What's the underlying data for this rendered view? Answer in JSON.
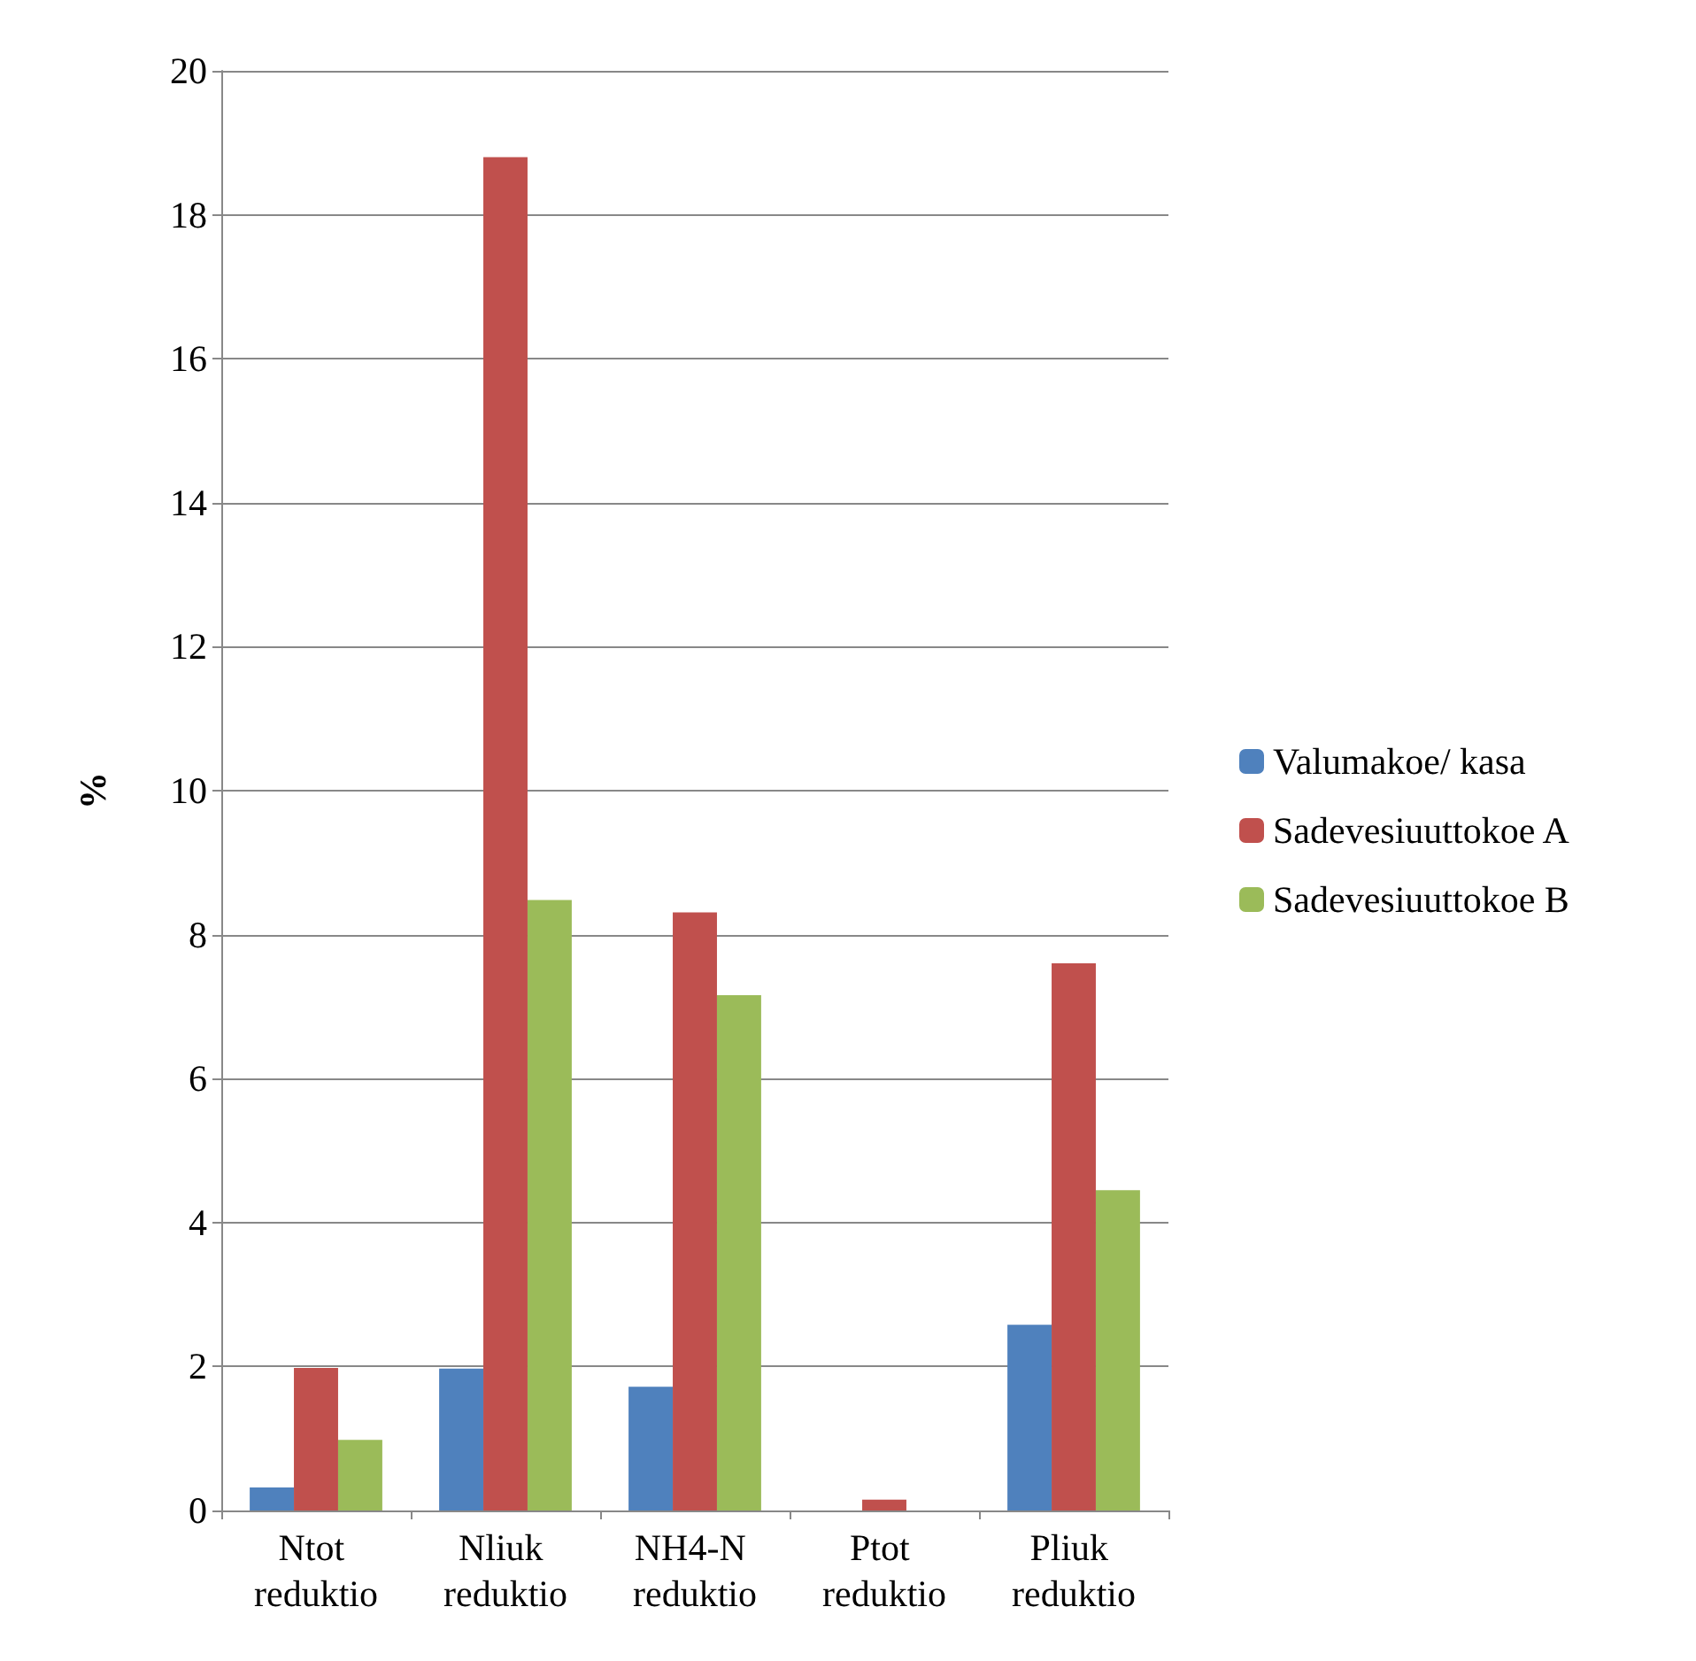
{
  "chart_data": {
    "type": "bar",
    "ylabel": "%",
    "categories": [
      "Ntot reduktio",
      "Nliuk reduktio",
      "NH4-N reduktio",
      "Ptot reduktio",
      "Pliuk reduktio"
    ],
    "series": [
      {
        "name": "Valumakoe/ kasa",
        "color": "#4f81bd",
        "values": [
          0.32,
          1.97,
          1.72,
          0,
          2.58
        ]
      },
      {
        "name": "Sadevesiuuttokoe A",
        "color": "#c0504d",
        "values": [
          1.98,
          18.8,
          8.31,
          0.15,
          7.6
        ]
      },
      {
        "name": "Sadevesiuuttokoe B",
        "color": "#9bbb59",
        "values": [
          0.98,
          8.48,
          7.16,
          0,
          4.45
        ]
      }
    ],
    "ylim": [
      0,
      20
    ],
    "yticks": [
      0,
      2,
      4,
      6,
      8,
      10,
      12,
      14,
      16,
      18,
      20
    ],
    "grid": "y",
    "legend": "right"
  }
}
